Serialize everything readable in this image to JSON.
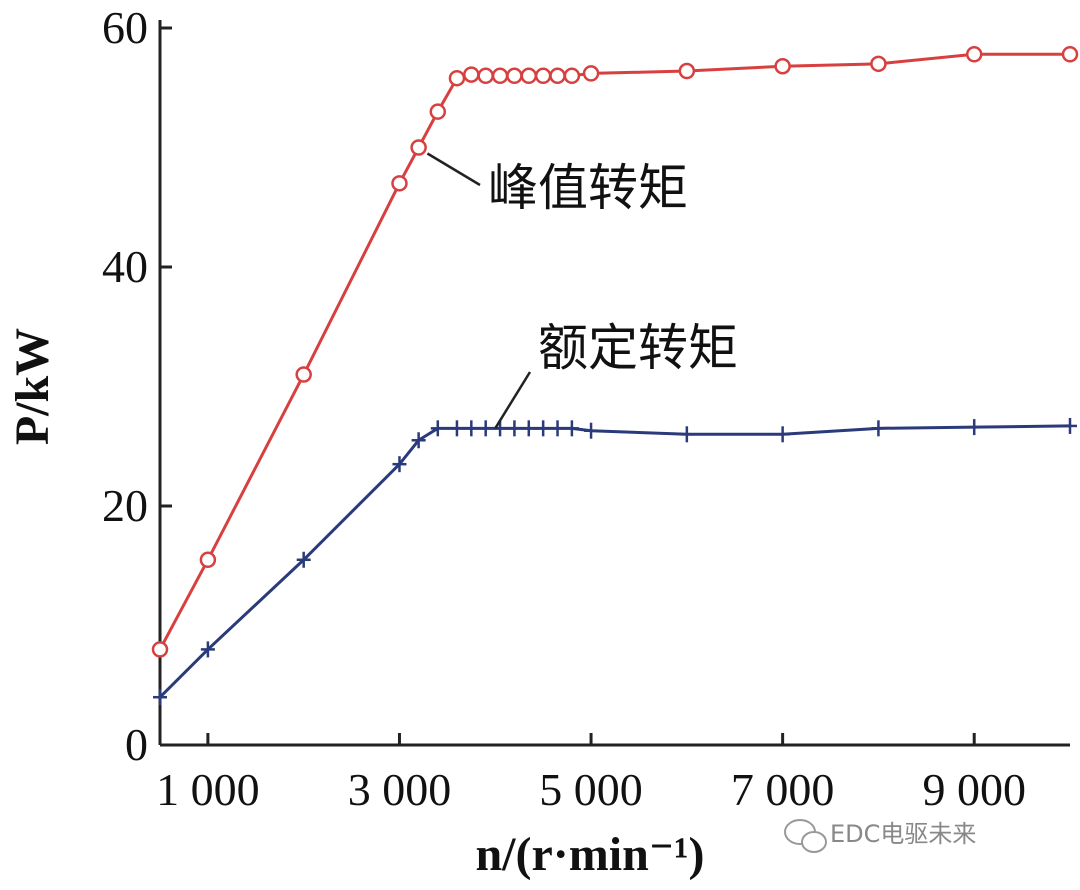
{
  "chart_data": {
    "type": "line",
    "xlabel": "n/(r·min⁻¹)",
    "ylabel": "P/kW",
    "xlim": [
      500,
      10000
    ],
    "ylim": [
      0,
      60
    ],
    "xticks": [
      1000,
      3000,
      5000,
      7000,
      9000
    ],
    "xtick_labels": [
      "1 000",
      "3 000",
      "5 000",
      "7 000",
      "9 000"
    ],
    "yticks": [
      0,
      20,
      40,
      60
    ],
    "ytick_labels": [
      "0",
      "20",
      "40",
      "60"
    ],
    "grid": false,
    "series": [
      {
        "name": "峰值转矩",
        "color": "#d84040",
        "marker": "circle",
        "x": [
          500,
          1000,
          2000,
          3000,
          3200,
          3400,
          3600,
          3750,
          3900,
          4050,
          4200,
          4350,
          4500,
          4650,
          4800,
          5000,
          6000,
          7000,
          8000,
          9000,
          10000
        ],
        "y": [
          8,
          15.5,
          31,
          47,
          50,
          53,
          55.8,
          56.1,
          56.0,
          56.0,
          56.0,
          56.0,
          56.0,
          56.0,
          56.0,
          56.2,
          56.4,
          56.8,
          57.0,
          57.8,
          57.8
        ]
      },
      {
        "name": "额定转矩",
        "color": "#2a3a7a",
        "marker": "plus",
        "x": [
          500,
          1000,
          2000,
          3000,
          3200,
          3400,
          3600,
          3750,
          3900,
          4050,
          4200,
          4350,
          4500,
          4650,
          4800,
          5000,
          6000,
          7000,
          8000,
          9000,
          10000
        ],
        "y": [
          4,
          8,
          15.5,
          23.5,
          25.5,
          26.5,
          26.5,
          26.5,
          26.5,
          26.5,
          26.5,
          26.5,
          26.5,
          26.5,
          26.5,
          26.3,
          26.0,
          26.0,
          26.5,
          26.6,
          26.7
        ]
      }
    ],
    "annotations": [
      {
        "text": "峰值转矩",
        "series": 0
      },
      {
        "text": "额定转矩",
        "series": 1
      }
    ]
  },
  "watermark": "EDC电驱未来"
}
